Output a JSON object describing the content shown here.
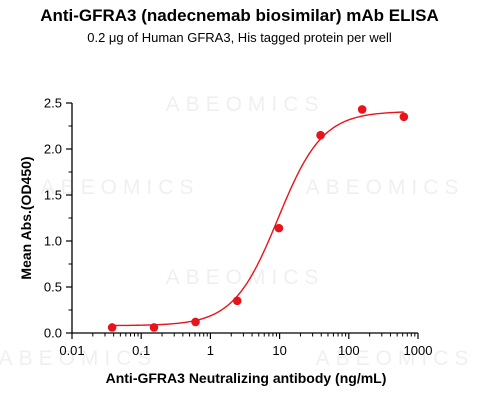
{
  "chart_data": {
    "type": "scatter",
    "title": "Anti-GFRA3 (nadecnemab biosimilar) mAb ELISA",
    "subtitle": "0.2 μg of Human GFRA3, His tagged protein per well",
    "xlabel": "Anti-GFRA3 Neutralizing antibody (ng/mL)",
    "ylabel": "Mean Abs.(OD450)",
    "xscale": "log",
    "xlim": [
      0.01,
      1000
    ],
    "ylim": [
      0,
      2.5
    ],
    "x_ticks": [
      "0.01",
      "0.1",
      "1",
      "10",
      "100",
      "1000"
    ],
    "y_ticks": [
      "0.0",
      "0.5",
      "1.0",
      "1.5",
      "2.0",
      "2.5"
    ],
    "grid": false,
    "colors": {
      "points": "#e8141c",
      "curve": "#e8141c",
      "axis": "#000000"
    },
    "series": [
      {
        "x": [
          0.038,
          0.153,
          0.61,
          2.44,
          9.77,
          39.1,
          156,
          625
        ],
        "y": [
          0.06,
          0.06,
          0.12,
          0.35,
          1.14,
          2.15,
          2.43,
          2.35
        ]
      }
    ],
    "fit_curve": {
      "model": "4PL",
      "bottom": 0.08,
      "top": 2.41,
      "ec50": 9.5,
      "hill": 1.35
    }
  },
  "watermark": "ABEOMICS"
}
